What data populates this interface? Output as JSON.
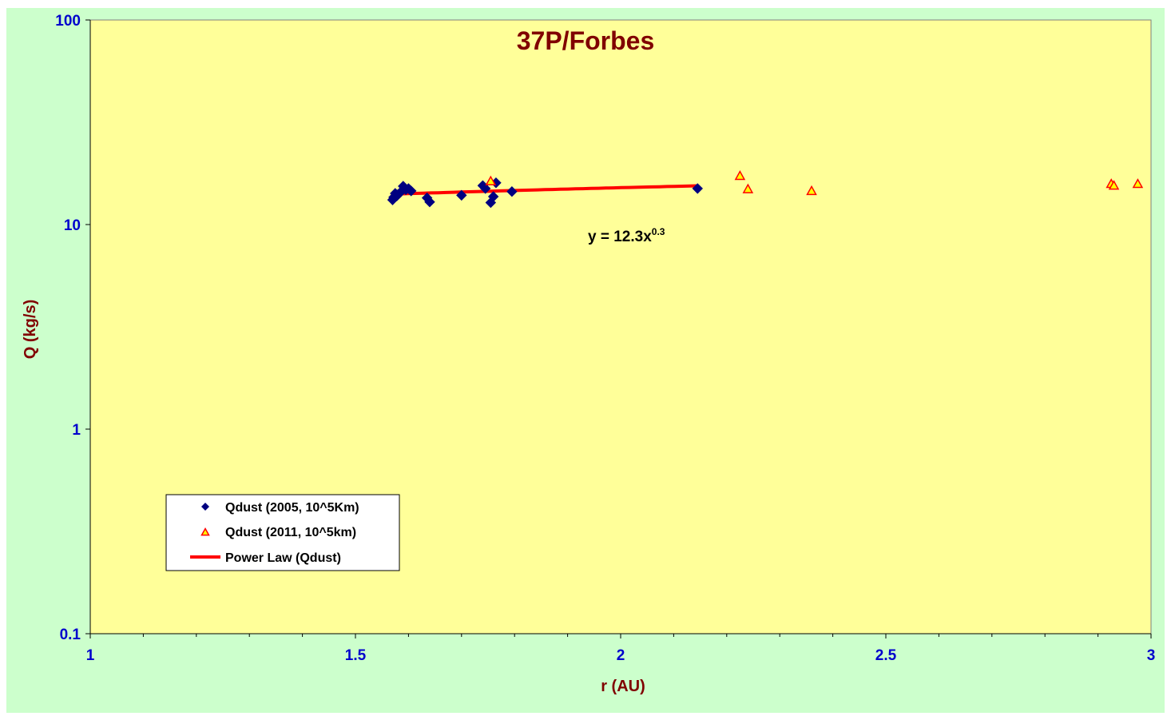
{
  "colors": {
    "outer_bg": "#ccffcc",
    "plot_bg": "#ffff99",
    "axis_tick_text": "#0000cc",
    "axis_title_text": "#800000",
    "title_text": "#800000",
    "series1_marker": "#000080",
    "series2_marker_fill": "#ffff00",
    "series2_marker_stroke": "#ff0000",
    "fit_line": "#ff0000"
  },
  "chart_data": {
    "type": "scatter",
    "title": "37P/Forbes",
    "xlabel": "r (AU)",
    "ylabel": "Q (kg/s)",
    "xlim": [
      1,
      3
    ],
    "ylim": [
      0.1,
      100
    ],
    "yscale": "log",
    "grid": false,
    "legend_position": "bottom-left",
    "x_ticks": [
      "1",
      "1.5",
      "2",
      "2.5",
      "3"
    ],
    "y_ticks": [
      "0.1",
      "1",
      "10",
      "100"
    ],
    "series": [
      {
        "name": "Qdust (2005, 10^5Km)",
        "marker": "diamond",
        "points": [
          [
            1.57,
            13.2
          ],
          [
            1.572,
            13.6
          ],
          [
            1.575,
            14.2
          ],
          [
            1.578,
            13.8
          ],
          [
            1.58,
            14.0
          ],
          [
            1.585,
            14.4
          ],
          [
            1.59,
            15.4
          ],
          [
            1.595,
            14.8
          ],
          [
            1.6,
            15.0
          ],
          [
            1.605,
            14.6
          ],
          [
            1.635,
            13.5
          ],
          [
            1.64,
            12.9
          ],
          [
            1.7,
            13.9
          ],
          [
            1.74,
            15.5
          ],
          [
            1.745,
            15.0
          ],
          [
            1.755,
            12.8
          ],
          [
            1.76,
            13.7
          ],
          [
            1.765,
            16.0
          ],
          [
            1.795,
            14.5
          ],
          [
            2.145,
            15.0
          ]
        ]
      },
      {
        "name": "Qdust (2011, 10^5km)",
        "marker": "triangle",
        "points": [
          [
            1.755,
            16.3
          ],
          [
            2.225,
            17.3
          ],
          [
            2.24,
            14.9
          ],
          [
            2.36,
            14.6
          ],
          [
            2.925,
            15.8
          ],
          [
            2.93,
            15.5
          ],
          [
            2.975,
            15.8
          ]
        ]
      }
    ],
    "fit": {
      "name": "Power Law (Qdust)",
      "type": "power",
      "a": 12.3,
      "b": 0.3,
      "x_range": [
        1.57,
        2.145
      ],
      "equation_prefix": "y = 12.3x",
      "equation_exponent": "0.3"
    }
  }
}
